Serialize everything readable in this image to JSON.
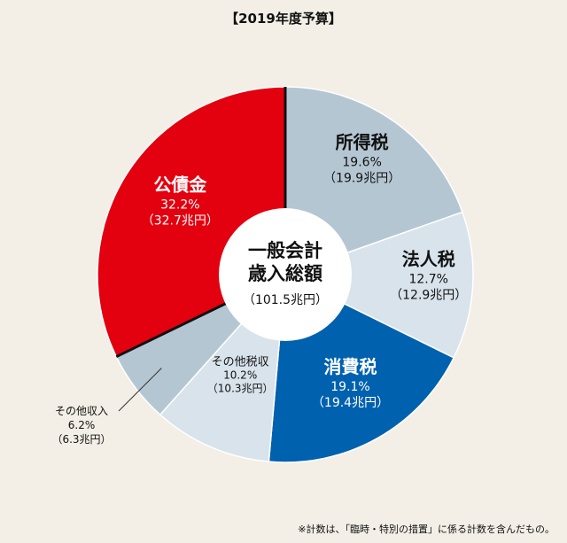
{
  "title": "【2019年度予算】",
  "footnote": "※計数は、「臨時・特別の措置」に係る計数を含んだもの。",
  "colors": {
    "background": "#f3efe6",
    "red": "#e3000f",
    "blue": "#0061ae",
    "gray_blue": "#b5c6d3",
    "light_blue": "#d8e3ec"
  },
  "chart_data": {
    "type": "pie",
    "title": "【2019年度予算】",
    "center_label": {
      "line1": "一般会計",
      "line2": "歳入総額",
      "line3": "（101.5兆円）"
    },
    "total_trillion_yen": 101.5,
    "slices": [
      {
        "name": "所得税",
        "percent": "19.6%",
        "amount": "（19.9兆円）",
        "value": 19.6,
        "color": "#b5c6d3",
        "text_color": "#111111"
      },
      {
        "name": "法人税",
        "percent": "12.7%",
        "amount": "（12.9兆円）",
        "value": 12.7,
        "color": "#d8e3ec",
        "text_color": "#111111"
      },
      {
        "name": "消費税",
        "percent": "19.1%",
        "amount": "（19.4兆円）",
        "value": 19.1,
        "color": "#0061ae",
        "text_color": "#ffffff"
      },
      {
        "name": "その他税収",
        "percent": "10.2%",
        "amount": "（10.3兆円）",
        "value": 10.2,
        "color": "#d8e3ec",
        "text_color": "#111111"
      },
      {
        "name": "その他収入",
        "percent": "6.2%",
        "amount": "（6.3兆円）",
        "value": 6.2,
        "color": "#b5c6d3",
        "text_color": "#111111"
      },
      {
        "name": "公債金",
        "percent": "32.2%",
        "amount": "（32.7兆円）",
        "value": 32.2,
        "color": "#e3000f",
        "text_color": "#ffffff"
      }
    ]
  }
}
